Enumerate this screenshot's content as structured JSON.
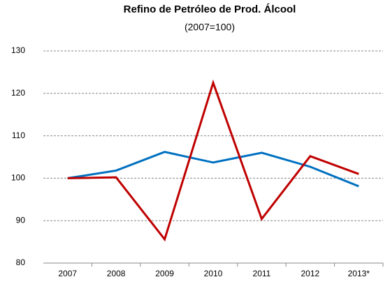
{
  "chart_data": {
    "type": "line",
    "title": "Refino de Petróleo de Prod. Álcool",
    "subtitle": "(2007=100)",
    "categories": [
      "2007",
      "2008",
      "2009",
      "2010",
      "2011",
      "2012",
      "2013*"
    ],
    "series": [
      {
        "color": "#0070c0",
        "values": [
          100,
          101.8,
          106.2,
          103.7,
          106,
          102.7,
          98.1
        ]
      },
      {
        "color": "#c00000",
        "values": [
          100,
          100.2,
          85.6,
          122.5,
          90.4,
          105.2,
          101
        ]
      }
    ],
    "ylim": [
      80,
      130
    ],
    "yticks": [
      80,
      90,
      100,
      110,
      120,
      130
    ],
    "grid": true
  }
}
